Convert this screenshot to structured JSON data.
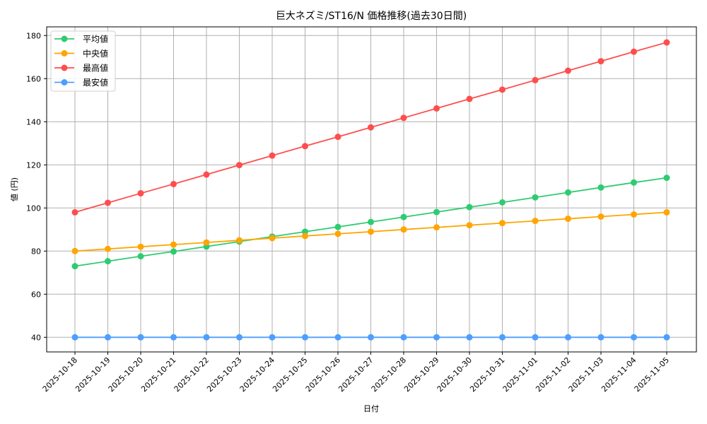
{
  "chart_data": {
    "type": "line",
    "title": "巨大ネズミ/ST16/N 価格推移(過去30日間)",
    "xlabel": "日付",
    "ylabel": "値 (円)",
    "ylim": [
      33.3,
      184.5
    ],
    "yticks": [
      40,
      60,
      80,
      100,
      120,
      140,
      160,
      180
    ],
    "grid": true,
    "legend_position": "upper left",
    "categories": [
      "2025-10-18",
      "2025-10-19",
      "2025-10-20",
      "2025-10-21",
      "2025-10-22",
      "2025-10-23",
      "2025-10-24",
      "2025-10-25",
      "2025-10-26",
      "2025-10-27",
      "2025-10-28",
      "2025-10-29",
      "2025-10-30",
      "2025-10-31",
      "2025-11-01",
      "2025-11-02",
      "2025-11-03",
      "2025-11-04",
      "2025-11-05"
    ],
    "series": [
      {
        "name": "平均値",
        "color": "#2ecc71",
        "values": [
          73.0,
          75.3,
          77.6,
          79.8,
          82.1,
          84.4,
          86.7,
          89.0,
          91.2,
          93.5,
          95.8,
          98.1,
          100.4,
          102.6,
          104.9,
          107.2,
          109.5,
          111.8,
          114.0
        ]
      },
      {
        "name": "中央値",
        "color": "#ffa500",
        "values": [
          80,
          81,
          82,
          83,
          84,
          85,
          86,
          87,
          88,
          89,
          90,
          91,
          92,
          93,
          94,
          95,
          96,
          97,
          98
        ]
      },
      {
        "name": "最高値",
        "color": "#ff4d4d",
        "values": [
          98.0,
          102.4,
          106.8,
          111.1,
          115.5,
          119.9,
          124.3,
          128.7,
          133.0,
          137.4,
          141.8,
          146.2,
          150.6,
          154.9,
          159.3,
          163.7,
          168.1,
          172.5,
          176.8
        ]
      },
      {
        "name": "最安値",
        "color": "#4d9fff",
        "values": [
          40,
          40,
          40,
          40,
          40,
          40,
          40,
          40,
          40,
          40,
          40,
          40,
          40,
          40,
          40,
          40,
          40,
          40,
          40
        ]
      }
    ]
  }
}
